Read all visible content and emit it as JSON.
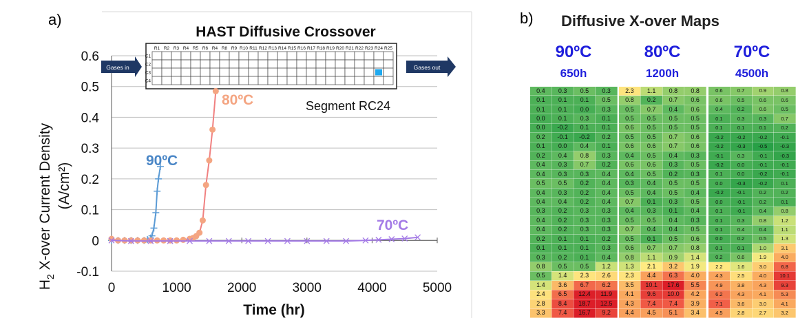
{
  "panel_a_label": "a)",
  "panel_b_label": "b)",
  "chart_data": [
    {
      "type": "line",
      "title": "HAST Diffusive Crossover",
      "xlabel": "Time (hr)",
      "ylabel_main": "H",
      "ylabel_sub": "2",
      "ylabel_rest": " X-over Current Density",
      "ylabel_units": "(A/cm²)",
      "xlim": [
        0,
        5000
      ],
      "ylim": [
        -0.1,
        0.6
      ],
      "xticks": [
        "0",
        "1000",
        "2000",
        "3000",
        "4000",
        "5000"
      ],
      "yticks": [
        "-0.1",
        "0",
        "0.1",
        "0.2",
        "0.3",
        "0.4",
        "0.5",
        "0.6"
      ],
      "grid": true,
      "annotation": "Segment RC24",
      "series": [
        {
          "name": "90ºC",
          "color": "#5b9bd5",
          "marker": "plus",
          "x": [
            0,
            100,
            200,
            300,
            400,
            500,
            550,
            600,
            620,
            650,
            680,
            700,
            720,
            750
          ],
          "y": [
            0,
            0,
            0,
            0,
            0,
            0,
            0.003,
            0.008,
            0.015,
            0.04,
            0.09,
            0.16,
            0.2,
            0.24
          ]
        },
        {
          "name": "80ºC",
          "color": "#f4a582",
          "line_color": "#f08080",
          "marker": "circle",
          "x": [
            0,
            100,
            200,
            300,
            400,
            500,
            600,
            700,
            800,
            900,
            1000,
            1100,
            1200,
            1250,
            1300,
            1350,
            1400,
            1450,
            1500,
            1550,
            1600
          ],
          "y": [
            0.005,
            0,
            0,
            0,
            0,
            0,
            0,
            0,
            0,
            0,
            0,
            0.002,
            0.005,
            0.008,
            0.014,
            0.025,
            0.065,
            0.18,
            0.26,
            0.36,
            0.485
          ]
        },
        {
          "name": "70ºC",
          "color": "#a47be6",
          "marker": "x",
          "x": [
            0,
            300,
            600,
            900,
            1200,
            1500,
            1800,
            2100,
            2400,
            2700,
            3000,
            3300,
            3600,
            3900,
            4100,
            4300,
            4500,
            4700
          ],
          "y": [
            0,
            -0.002,
            -0.002,
            -0.002,
            -0.002,
            -0.002,
            -0.002,
            -0.002,
            -0.002,
            -0.002,
            -0.002,
            -0.002,
            -0.002,
            0,
            0.002,
            0.004,
            0.006,
            0.01
          ]
        }
      ],
      "series_labels": [
        "90ºC",
        "80ºC",
        "70ºC"
      ],
      "inset": {
        "columns": [
          "R1",
          "R2",
          "R3",
          "R4",
          "R5",
          "R6",
          "R4",
          "R8",
          "R9",
          "R10",
          "R11",
          "R12",
          "R13",
          "R14",
          "R15",
          "R16",
          "R17",
          "R18",
          "R19",
          "R20",
          "R21",
          "R22",
          "R23",
          "R24",
          "R25"
        ],
        "rows": [
          "C1",
          "C2",
          "C3",
          "C4"
        ],
        "highlight_row": "C3",
        "highlight_col": "R24",
        "highlight_color": "#1fa9ef",
        "gases_in": "Gases in",
        "gases_out": "Gases out"
      }
    },
    {
      "type": "heatmap",
      "title": "Diffusive X-over Maps",
      "maps": [
        {
          "temp": "90ºC",
          "duration": "650h",
          "values": [
            [
              "0.4",
              "0.3",
              "0.5",
              "0.3"
            ],
            [
              "0.1",
              "0.1",
              "0.1",
              "0.5"
            ],
            [
              "0.1",
              "0.1",
              "0.0",
              "0.3"
            ],
            [
              "0.0",
              "0.1",
              "0.3",
              "0.1"
            ],
            [
              "0.0",
              "-0.2",
              "0.1",
              "0.1"
            ],
            [
              "0.2",
              "-0.1",
              "-0.2",
              "0.2"
            ],
            [
              "0.1",
              "0.0",
              "0.4",
              "0.1"
            ],
            [
              "0.2",
              "0.4",
              "0.8",
              "0.3"
            ],
            [
              "0.4",
              "0.3",
              "0.7",
              "0.2"
            ],
            [
              "0.4",
              "0.3",
              "0.3",
              "0.4"
            ],
            [
              "0.5",
              "0.5",
              "0.2",
              "0.4"
            ],
            [
              "0.4",
              "0.3",
              "0.2",
              "0.4"
            ],
            [
              "0.4",
              "0.4",
              "0.2",
              "0.4"
            ],
            [
              "0.3",
              "0.2",
              "0.3",
              "0.3"
            ],
            [
              "0.4",
              "0.2",
              "0.3",
              "0.3"
            ],
            [
              "0.4",
              "0.2",
              "0.3",
              "0.3"
            ],
            [
              "0.2",
              "0.1",
              "0.1",
              "0.2"
            ],
            [
              "0.1",
              "0.1",
              "0.1",
              "0.3"
            ],
            [
              "0.3",
              "0.2",
              "0.1",
              "0.4"
            ],
            [
              "0.8",
              "0.5",
              "0.5",
              "1.2"
            ],
            [
              "0.5",
              "1.4",
              "2.3",
              "2.6"
            ],
            [
              "1.4",
              "3.6",
              "6.7",
              "6.2"
            ],
            [
              "2.4",
              "6.5",
              "12.4",
              "11.9"
            ],
            [
              "2.8",
              "8.4",
              "18.7",
              "12.5"
            ],
            [
              "3.3",
              "7.4",
              "16.7",
              "9.2"
            ]
          ]
        },
        {
          "temp": "80ºC",
          "duration": "1200h",
          "values": [
            [
              "2.3",
              "1.1",
              "0.8",
              "0.8"
            ],
            [
              "0.8",
              "0.2",
              "0.7",
              "0.6"
            ],
            [
              "0.5",
              "0.7",
              "0.4",
              "0.6"
            ],
            [
              "0.5",
              "0.5",
              "0.5",
              "0.5"
            ],
            [
              "0.6",
              "0.5",
              "0.5",
              "0.5"
            ],
            [
              "0.5",
              "0.5",
              "0.7",
              "0.6"
            ],
            [
              "0.6",
              "0.6",
              "0.7",
              "0.6"
            ],
            [
              "0.4",
              "0.5",
              "0.4",
              "0.3"
            ],
            [
              "0.6",
              "0.6",
              "0.3",
              "0.5"
            ],
            [
              "0.4",
              "0.5",
              "0.2",
              "0.3"
            ],
            [
              "0.3",
              "0.4",
              "0.5",
              "0.5"
            ],
            [
              "0.5",
              "0.4",
              "0.5",
              "0.4"
            ],
            [
              "0.7",
              "0.1",
              "0.3",
              "0.5"
            ],
            [
              "0.4",
              "0.3",
              "0.1",
              "0.4"
            ],
            [
              "0.5",
              "0.5",
              "0.4",
              "0.3"
            ],
            [
              "0.7",
              "0.4",
              "0.4",
              "0.5"
            ],
            [
              "0.5",
              "0.1",
              "0.5",
              "0.6"
            ],
            [
              "0.6",
              "0.7",
              "0.7",
              "0.8"
            ],
            [
              "0.8",
              "1.1",
              "0.9",
              "1.4"
            ],
            [
              "1.3",
              "2.1",
              "3.2",
              "1.9"
            ],
            [
              "2.3",
              "4.4",
              "6.3",
              "4.0"
            ],
            [
              "3.5",
              "10.1",
              "17.6",
              "5.5"
            ],
            [
              "4.1",
              "9.6",
              "10.0",
              "4.2"
            ],
            [
              "4.3",
              "7.4",
              "7.4",
              "3.9"
            ],
            [
              "4.4",
              "4.5",
              "5.1",
              "3.4"
            ]
          ]
        },
        {
          "temp": "70ºC",
          "duration": "4500h",
          "values": [
            [
              "0.6",
              "0.7",
              "0.9",
              "0.8"
            ],
            [
              "0.6",
              "0.5",
              "0.6",
              "0.6"
            ],
            [
              "0.4",
              "0.2",
              "0.6",
              "0.5"
            ],
            [
              "0.1",
              "0.3",
              "0.3",
              "0.7"
            ],
            [
              "0.1",
              "0.1",
              "0.1",
              "0.2"
            ],
            [
              "-0.2",
              "-0.2",
              "-0.2",
              "-0.1"
            ],
            [
              "-0.2",
              "-0.3",
              "-0.5",
              "-0.3"
            ],
            [
              "-0.1",
              "0.3",
              "-0.1",
              "-0.3"
            ],
            [
              "-0.2",
              "0.0",
              "-0.1",
              "-0.1"
            ],
            [
              "0.1",
              "0.0",
              "-0.2",
              "-0.1"
            ],
            [
              "0.0",
              "-0.3",
              "-0.2",
              "0.1"
            ],
            [
              "-0.2",
              "-0.1",
              "0.2",
              "0.2"
            ],
            [
              "0.0",
              "-0.1",
              "0.2",
              "0.1"
            ],
            [
              "0.1",
              "-0.1",
              "0.4",
              "0.8"
            ],
            [
              "0.1",
              "0.3",
              "0.8",
              "1.2"
            ],
            [
              "0.1",
              "0.4",
              "0.4",
              "1.1"
            ],
            [
              "0.0",
              "0.2",
              "0.5",
              "1.3"
            ],
            [
              "0.1",
              "0.1",
              "1.0",
              "3.1"
            ],
            [
              "0.2",
              "0.6",
              "1.9",
              "4.0"
            ],
            [
              "2.2",
              "1.6",
              "3.0",
              "6.8"
            ],
            [
              "4.3",
              "2.5",
              "4.0",
              "10.1"
            ],
            [
              "4.9",
              "3.8",
              "4.3",
              "9.3"
            ],
            [
              "6.2",
              "4.3",
              "4.1",
              "5.3"
            ],
            [
              "7.1",
              "3.6",
              "3.0",
              "4.1"
            ],
            [
              "4.5",
              "2.8",
              "2.7",
              "3.2"
            ]
          ]
        }
      ]
    }
  ]
}
